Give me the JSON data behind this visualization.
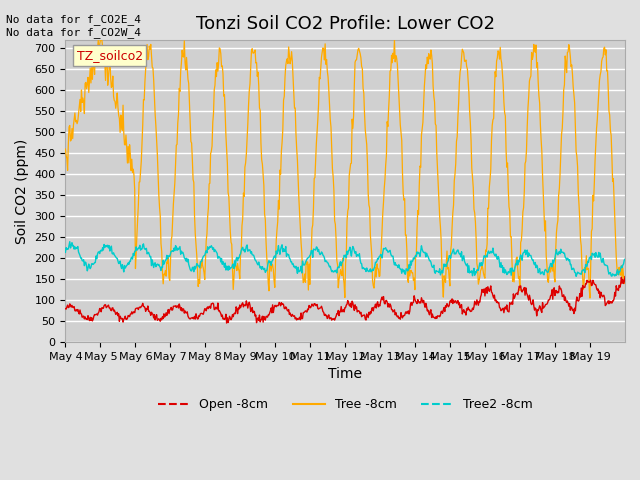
{
  "title": "Tonzi Soil CO2 Profile: Lower CO2",
  "xlabel": "Time",
  "ylabel": "Soil CO2 (ppm)",
  "top_left_text": "No data for f_CO2E_4\nNo data for f_CO2W_4",
  "legend_box_text": "TZ_soilco2",
  "ylim": [
    0,
    720
  ],
  "yticks": [
    0,
    50,
    100,
    150,
    200,
    250,
    300,
    350,
    400,
    450,
    500,
    550,
    600,
    650,
    700
  ],
  "bg_color": "#e0e0e0",
  "plot_bg_color": "#d0d0d0",
  "grid_color": "#ffffff",
  "legend_labels": [
    "Open -8cm",
    "Tree -8cm",
    "Tree2 -8cm"
  ],
  "legend_colors": [
    "#dd0000",
    "#ffaa00",
    "#00cccc"
  ],
  "line_colors": {
    "open": "#dd0000",
    "tree": "#ffaa00",
    "tree2": "#00cccc"
  },
  "xtick_labels": [
    "May 4",
    "May 5",
    "May 6",
    "May 7",
    "May 8",
    "May 9",
    "May 10",
    "May 11",
    "May 12",
    "May 13",
    "May 14",
    "May 15",
    "May 16",
    "May 17",
    "May 18",
    "May 19"
  ],
  "title_fontsize": 13,
  "axis_label_fontsize": 10,
  "tick_fontsize": 8
}
